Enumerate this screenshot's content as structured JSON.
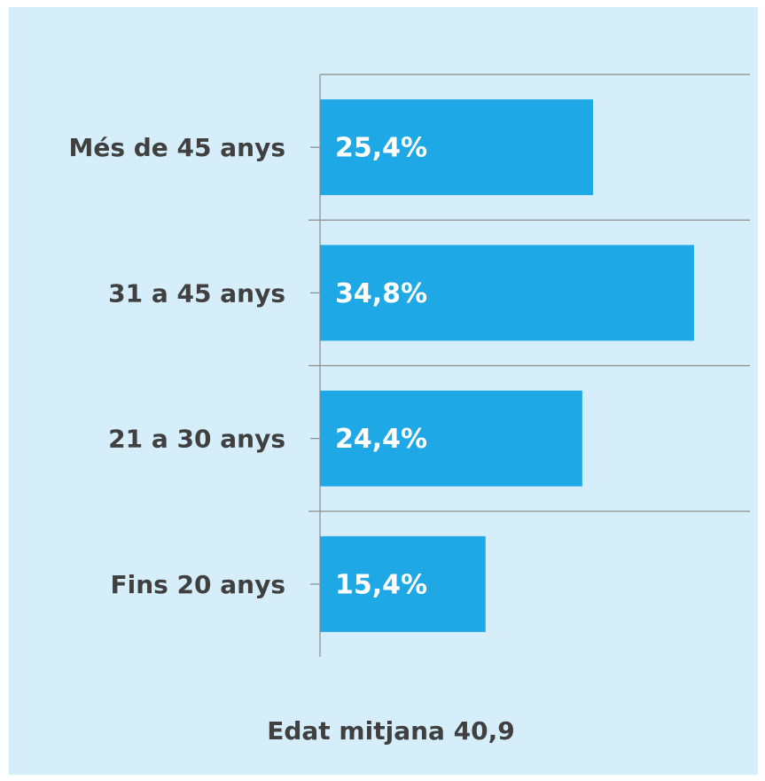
{
  "chart_data": {
    "type": "barh",
    "categories": [
      "Més de 45 anys",
      "31 a 45 anys",
      "21 a 30 anys",
      "Fins 20 anys"
    ],
    "values": [
      25.4,
      34.8,
      24.4,
      15.4
    ],
    "value_labels": [
      "25,4%",
      "34,8%",
      "24,4%",
      "15,4%"
    ],
    "color": "#1ea8e6",
    "xlim": [
      0,
      40
    ],
    "annotation": "Edat mitjana 40,9"
  }
}
